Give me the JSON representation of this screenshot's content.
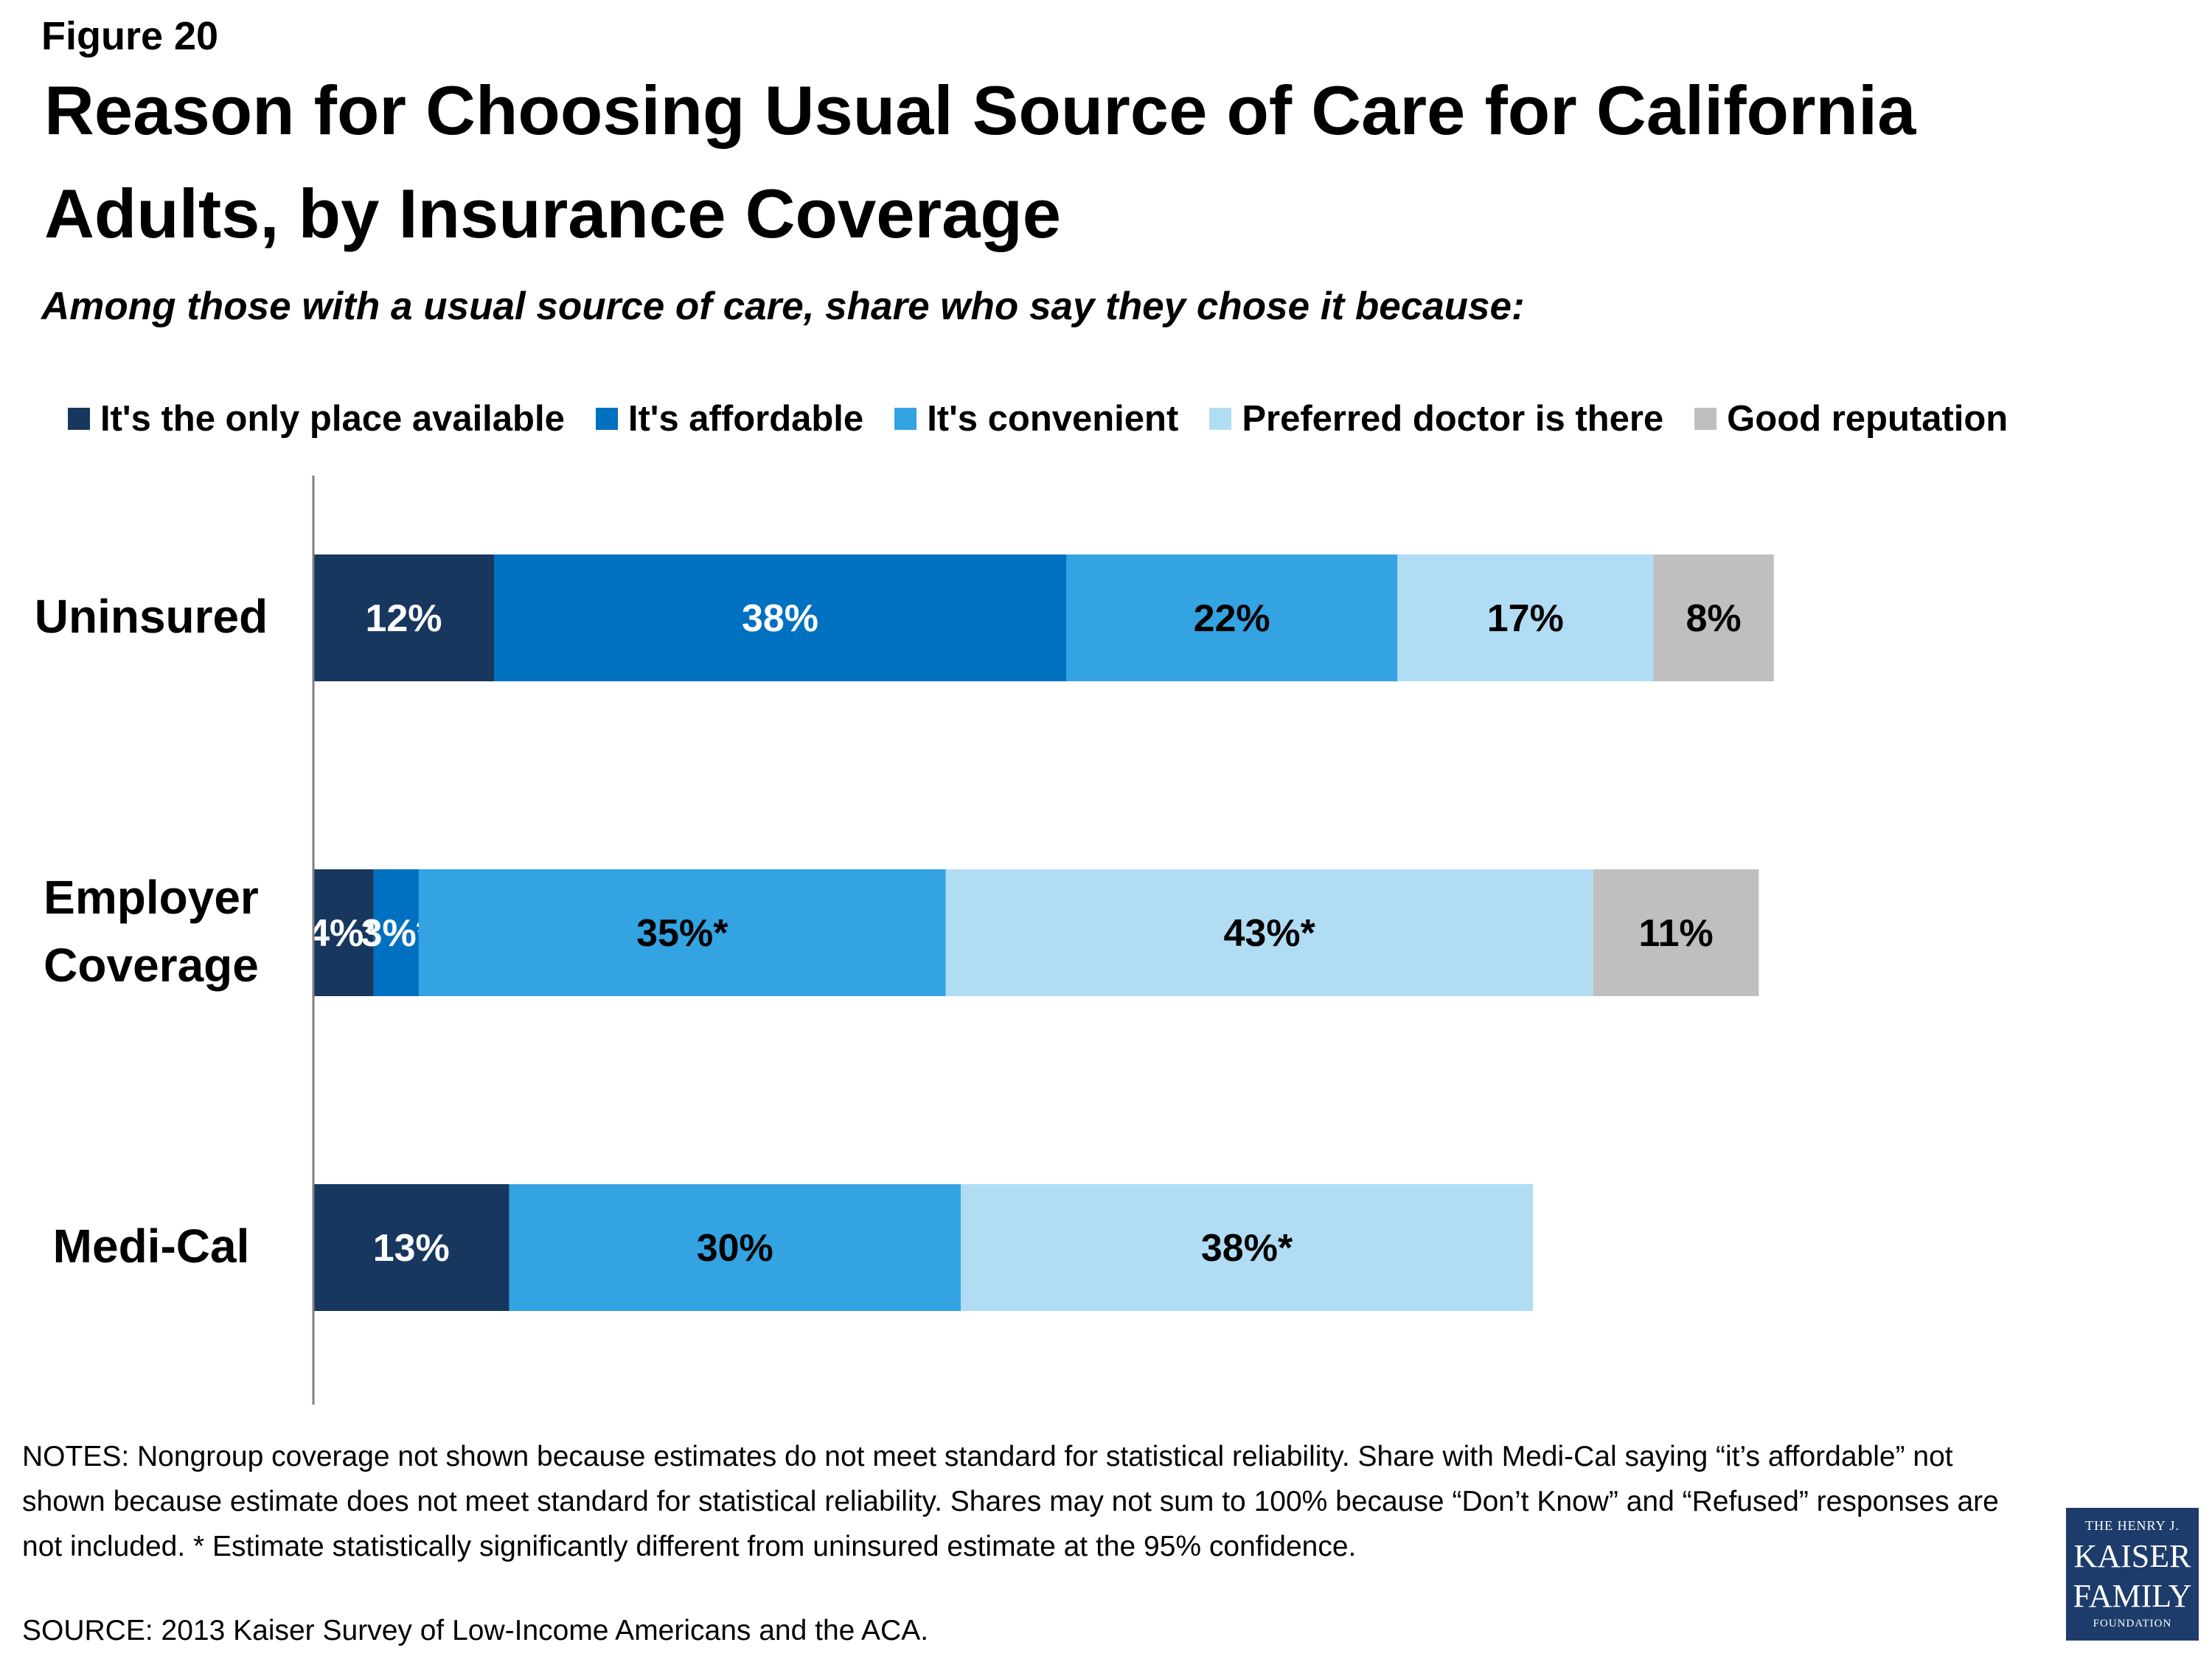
{
  "figure_label": "Figure 20",
  "title": "Reason for Choosing Usual Source of Care for California Adults, by Insurance Coverage",
  "subtitle": "Among those with a usual source of care, share who say they chose it because:",
  "notes": "NOTES: Nongroup coverage not shown because estimates do not meet standard for statistical reliability. Share with Medi-Cal saying “it’s affordable” not shown because estimate does not meet standard for statistical reliability. Shares may not sum to 100% because “Don’t Know” and “Refused” responses are not included. * Estimate statistically significantly different from uninsured estimate  at the 95% confidence.",
  "source": "SOURCE: 2013 Kaiser Survey of Low-Income Americans and the ACA.",
  "logo": {
    "line1": "THE HENRY J.",
    "line2": "KAISER",
    "line3": "FAMILY",
    "line4": "FOUNDATION"
  },
  "chart_data": {
    "type": "bar",
    "orientation": "horizontal",
    "stacked": true,
    "categories": [
      [
        "Uninsured"
      ],
      [
        "Employer",
        "Coverage"
      ],
      [
        "Medi-Cal"
      ]
    ],
    "series": [
      {
        "name": "It's the only place available",
        "color": "#17375e",
        "values": [
          12,
          4,
          13
        ],
        "labels": [
          "12%",
          "4%*",
          "13%"
        ],
        "label_colors": [
          "#ffffff",
          "#ffffff",
          "#ffffff"
        ]
      },
      {
        "name": "It's affordable",
        "color": "#0070c0",
        "values": [
          38,
          3,
          null
        ],
        "labels": [
          "38%",
          "3%*",
          ""
        ],
        "label_colors": [
          "#ffffff",
          "#ffffff",
          "#ffffff"
        ]
      },
      {
        "name": "It's convenient",
        "color": "#33a3e2",
        "values": [
          22,
          35,
          30
        ],
        "labels": [
          "22%",
          "35%*",
          "30%"
        ],
        "label_colors": [
          "#000000",
          "#000000",
          "#000000"
        ]
      },
      {
        "name": "Preferred doctor is there",
        "color": "#b1ddf4",
        "values": [
          17,
          43,
          38
        ],
        "labels": [
          "17%",
          "43%*",
          "38%*"
        ],
        "label_colors": [
          "#000000",
          "#000000",
          "#000000"
        ]
      },
      {
        "name": "Good reputation",
        "color": "#bfbfbf",
        "values": [
          8,
          11,
          null
        ],
        "labels": [
          "8%",
          "11%",
          ""
        ],
        "label_colors": [
          "#000000",
          "#000000",
          "#000000"
        ]
      }
    ],
    "xlim": [
      0,
      100
    ],
    "grid": false,
    "legend_position": "top"
  }
}
